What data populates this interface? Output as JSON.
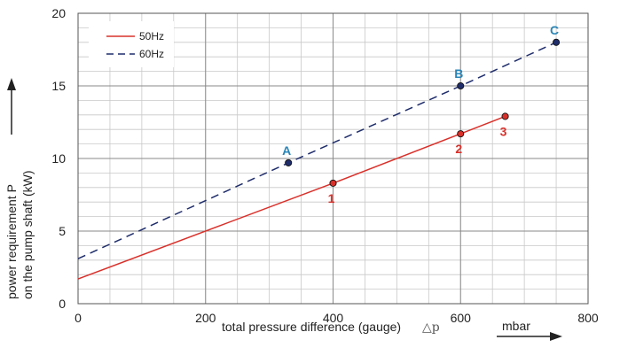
{
  "chart_data": {
    "type": "line",
    "xlabel": "total pressure difference (gauge)",
    "xlabel_symbol": "△p",
    "xunit": "mbar",
    "ylabel_line1": "power requirement P",
    "ylabel_line2": "on the pump shaft (kW)",
    "xlim": [
      0,
      800
    ],
    "ylim": [
      0,
      20
    ],
    "x_ticks": [
      "0",
      "200",
      "400",
      "600",
      "800"
    ],
    "y_ticks": [
      "0",
      "5",
      "10",
      "15",
      "20"
    ],
    "x_minor_step": 50,
    "y_minor_step": 1,
    "grid": true,
    "legend_position": "top-left",
    "series": [
      {
        "name": "50Hz",
        "style": "solid",
        "color": "#d9302a",
        "x": [
          0,
          400,
          600,
          670
        ],
        "y": [
          1.7,
          8.3,
          11.7,
          12.9
        ]
      },
      {
        "name": "60Hz",
        "style": "dashed",
        "color": "#1f2d6b",
        "x": [
          0,
          330,
          600,
          750
        ],
        "y": [
          3.1,
          9.7,
          15.0,
          18.0
        ]
      }
    ],
    "points": [
      {
        "label": "A",
        "x": 330,
        "y": 9.7,
        "series": 1,
        "color": "#2a86b8"
      },
      {
        "label": "B",
        "x": 600,
        "y": 15.0,
        "series": 1,
        "color": "#2a86b8"
      },
      {
        "label": "C",
        "x": 750,
        "y": 18.0,
        "series": 1,
        "color": "#2a86b8"
      },
      {
        "label": "1",
        "x": 400,
        "y": 8.3,
        "series": 0,
        "color": "#d9302a"
      },
      {
        "label": "2",
        "x": 600,
        "y": 11.7,
        "series": 0,
        "color": "#d9302a"
      },
      {
        "label": "3",
        "x": 670,
        "y": 12.9,
        "series": 0,
        "color": "#d9302a"
      }
    ]
  }
}
